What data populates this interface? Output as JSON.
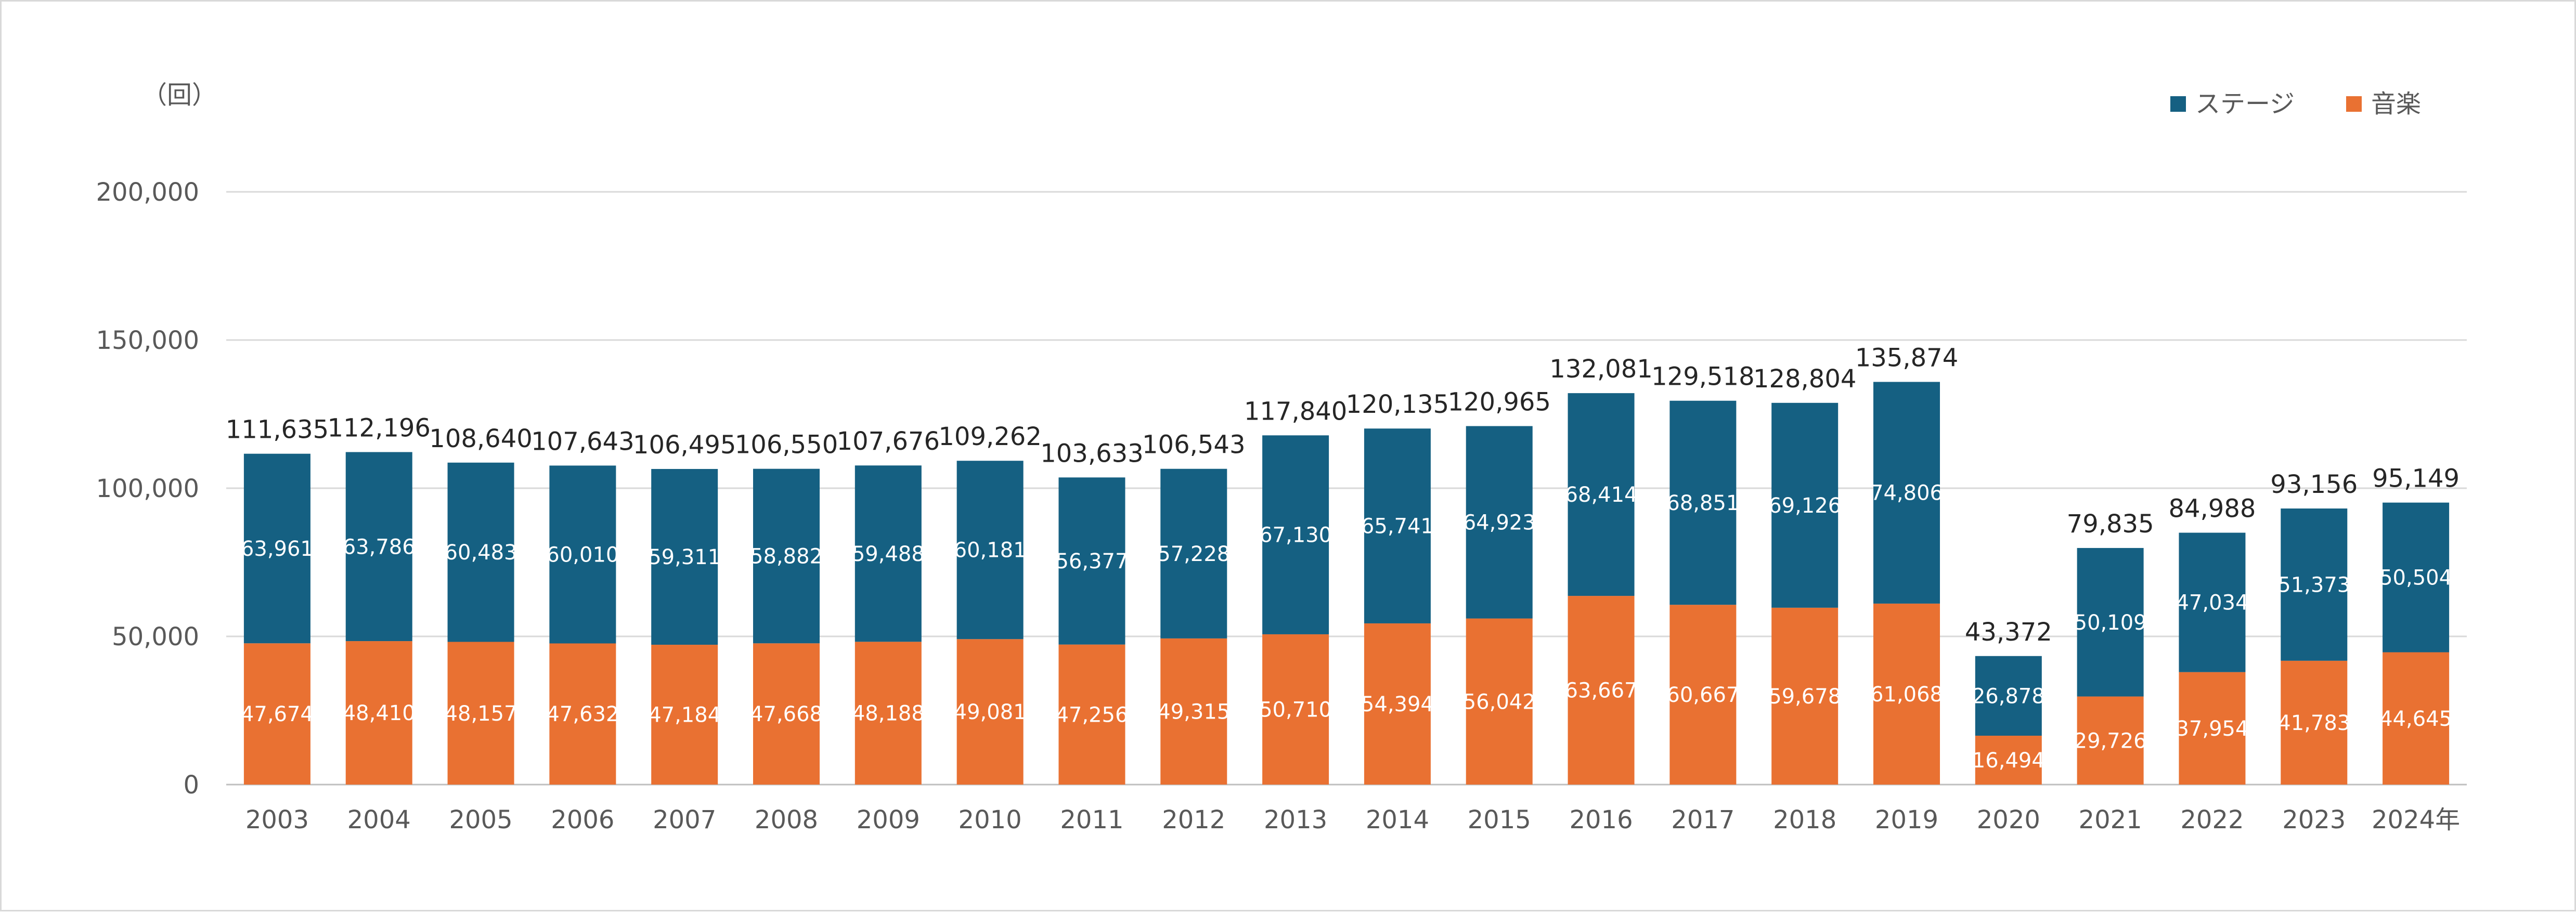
{
  "chart_data": {
    "type": "bar",
    "stacked": true,
    "unit_label": "（回）",
    "categories": [
      "2003",
      "2004",
      "2005",
      "2006",
      "2007",
      "2008",
      "2009",
      "2010",
      "2011",
      "2012",
      "2013",
      "2014",
      "2015",
      "2016",
      "2017",
      "2018",
      "2019",
      "2020",
      "2021",
      "2022",
      "2023",
      "2024年"
    ],
    "series": [
      {
        "name": "音楽",
        "color": "#E97132",
        "values": [
          47674,
          48410,
          48157,
          47632,
          47184,
          47668,
          48188,
          49081,
          47256,
          49315,
          50710,
          54394,
          56042,
          63667,
          60667,
          59678,
          61068,
          16494,
          29726,
          37954,
          41783,
          44645
        ],
        "labels": [
          "47,674",
          "48,410",
          "48,157",
          "47,632",
          "47,184",
          "47,668",
          "48,188",
          "49,081",
          "47,256",
          "49,315",
          "50,710",
          "54,394",
          "56,042",
          "63,667",
          "60,667",
          "59,678",
          "61,068",
          "16,494",
          "29,726",
          "37,954",
          "41,783",
          "44,645"
        ]
      },
      {
        "name": "ステージ",
        "color": "#156082",
        "values": [
          63961,
          63786,
          60483,
          60010,
          59311,
          58882,
          59488,
          60181,
          56377,
          57228,
          67130,
          65741,
          64923,
          68414,
          68851,
          69126,
          74806,
          26878,
          50109,
          47034,
          51373,
          50504
        ],
        "labels": [
          "63,961",
          "63,786",
          "60,483",
          "60,010",
          "59,311",
          "58,882",
          "59,488",
          "60,181",
          "56,377",
          "57,228",
          "67,130",
          "65,741",
          "64,923",
          "68,414",
          "68,851",
          "69,126",
          "74,806",
          "26,878",
          "50,109",
          "47,034",
          "51,373",
          "50,504"
        ]
      }
    ],
    "totals": [
      111635,
      112196,
      108640,
      107643,
      106495,
      106550,
      107676,
      109262,
      103633,
      106543,
      117840,
      120135,
      120965,
      132081,
      129518,
      128804,
      135874,
      43372,
      79835,
      84988,
      93156,
      95149
    ],
    "total_labels": [
      "111,635",
      "112,196",
      "108,640",
      "107,643",
      "106,495",
      "106,550",
      "107,676",
      "109,262",
      "103,633",
      "106,543",
      "117,840",
      "120,135",
      "120,965",
      "132,081",
      "129,518",
      "128,804",
      "135,874",
      "43,372",
      "79,835",
      "84,988",
      "93,156",
      "95,149"
    ],
    "ylim": [
      0,
      200000
    ],
    "yticks": [
      0,
      50000,
      100000,
      150000,
      200000
    ],
    "ytick_labels": [
      "0",
      "50,000",
      "100,000",
      "150,000",
      "200,000"
    ],
    "grid": true,
    "legend_position": "top-right",
    "legend_order": [
      "ステージ",
      "音楽"
    ]
  }
}
